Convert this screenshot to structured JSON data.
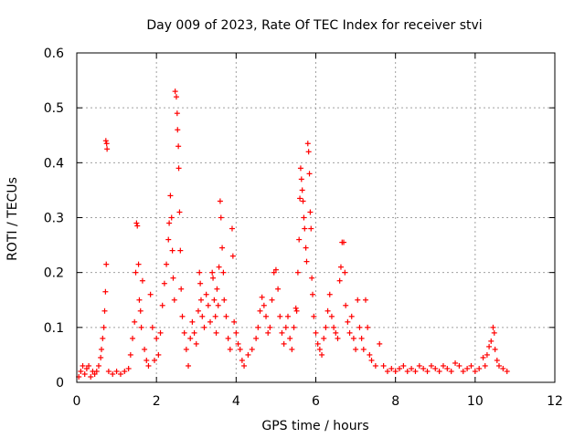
{
  "chart_data": {
    "type": "scatter",
    "title": "Day 009 of 2023, Rate Of TEC Index for receiver stvi",
    "xlabel": "GPS time / hours",
    "ylabel": "ROTI / TECUs",
    "xlim": [
      0,
      12
    ],
    "ylim": [
      0,
      0.6
    ],
    "x_ticks": [
      "0",
      "2",
      "4",
      "6",
      "8",
      "10",
      "12"
    ],
    "y_ticks": [
      "0",
      "0.1",
      "0.2",
      "0.3",
      "0.4",
      "0.5",
      "0.6"
    ],
    "grid": true,
    "marker": "plus",
    "color": "#ff0000",
    "series": [
      {
        "points": [
          [
            0.05,
            0.01
          ],
          [
            0.1,
            0.02
          ],
          [
            0.15,
            0.03
          ],
          [
            0.2,
            0.015
          ],
          [
            0.25,
            0.025
          ],
          [
            0.3,
            0.03
          ],
          [
            0.35,
            0.01
          ],
          [
            0.4,
            0.02
          ],
          [
            0.45,
            0.015
          ],
          [
            0.5,
            0.02
          ],
          [
            0.55,
            0.03
          ],
          [
            0.6,
            0.045
          ],
          [
            0.62,
            0.06
          ],
          [
            0.65,
            0.08
          ],
          [
            0.68,
            0.1
          ],
          [
            0.7,
            0.13
          ],
          [
            0.72,
            0.165
          ],
          [
            0.74,
            0.215
          ],
          [
            0.73,
            0.44
          ],
          [
            0.75,
            0.435
          ],
          [
            0.76,
            0.425
          ],
          [
            0.8,
            0.02
          ],
          [
            0.9,
            0.015
          ],
          [
            1.0,
            0.02
          ],
          [
            1.1,
            0.015
          ],
          [
            1.2,
            0.02
          ],
          [
            1.3,
            0.025
          ],
          [
            1.35,
            0.05
          ],
          [
            1.4,
            0.08
          ],
          [
            1.45,
            0.11
          ],
          [
            1.48,
            0.2
          ],
          [
            1.5,
            0.29
          ],
          [
            1.52,
            0.285
          ],
          [
            1.55,
            0.215
          ],
          [
            1.57,
            0.15
          ],
          [
            1.6,
            0.13
          ],
          [
            1.62,
            0.1
          ],
          [
            1.65,
            0.185
          ],
          [
            1.7,
            0.06
          ],
          [
            1.75,
            0.04
          ],
          [
            1.8,
            0.03
          ],
          [
            1.85,
            0.16
          ],
          [
            1.9,
            0.1
          ],
          [
            1.95,
            0.04
          ],
          [
            2.0,
            0.08
          ],
          [
            2.05,
            0.05
          ],
          [
            2.1,
            0.09
          ],
          [
            2.15,
            0.14
          ],
          [
            2.2,
            0.18
          ],
          [
            2.25,
            0.215
          ],
          [
            2.3,
            0.26
          ],
          [
            2.32,
            0.29
          ],
          [
            2.35,
            0.34
          ],
          [
            2.38,
            0.3
          ],
          [
            2.4,
            0.24
          ],
          [
            2.42,
            0.19
          ],
          [
            2.45,
            0.15
          ],
          [
            2.47,
            0.53
          ],
          [
            2.5,
            0.52
          ],
          [
            2.52,
            0.49
          ],
          [
            2.53,
            0.46
          ],
          [
            2.55,
            0.43
          ],
          [
            2.56,
            0.39
          ],
          [
            2.58,
            0.31
          ],
          [
            2.6,
            0.24
          ],
          [
            2.62,
            0.17
          ],
          [
            2.65,
            0.12
          ],
          [
            2.7,
            0.09
          ],
          [
            2.75,
            0.06
          ],
          [
            2.8,
            0.03
          ],
          [
            2.85,
            0.08
          ],
          [
            2.9,
            0.11
          ],
          [
            2.95,
            0.09
          ],
          [
            3.0,
            0.07
          ],
          [
            3.05,
            0.13
          ],
          [
            3.08,
            0.2
          ],
          [
            3.1,
            0.18
          ],
          [
            3.12,
            0.15
          ],
          [
            3.15,
            0.12
          ],
          [
            3.2,
            0.1
          ],
          [
            3.25,
            0.16
          ],
          [
            3.3,
            0.14
          ],
          [
            3.35,
            0.11
          ],
          [
            3.4,
            0.2
          ],
          [
            3.42,
            0.19
          ],
          [
            3.45,
            0.15
          ],
          [
            3.48,
            0.12
          ],
          [
            3.5,
            0.09
          ],
          [
            3.52,
            0.17
          ],
          [
            3.55,
            0.14
          ],
          [
            3.57,
            0.21
          ],
          [
            3.6,
            0.33
          ],
          [
            3.62,
            0.3
          ],
          [
            3.65,
            0.245
          ],
          [
            3.68,
            0.2
          ],
          [
            3.7,
            0.15
          ],
          [
            3.75,
            0.12
          ],
          [
            3.8,
            0.08
          ],
          [
            3.85,
            0.06
          ],
          [
            3.9,
            0.28
          ],
          [
            3.92,
            0.23
          ],
          [
            3.95,
            0.11
          ],
          [
            4.0,
            0.09
          ],
          [
            4.05,
            0.07
          ],
          [
            4.1,
            0.06
          ],
          [
            4.15,
            0.04
          ],
          [
            4.2,
            0.03
          ],
          [
            4.3,
            0.05
          ],
          [
            4.4,
            0.06
          ],
          [
            4.5,
            0.08
          ],
          [
            4.55,
            0.1
          ],
          [
            4.6,
            0.13
          ],
          [
            4.65,
            0.155
          ],
          [
            4.7,
            0.14
          ],
          [
            4.75,
            0.12
          ],
          [
            4.8,
            0.09
          ],
          [
            4.85,
            0.1
          ],
          [
            4.9,
            0.15
          ],
          [
            4.95,
            0.2
          ],
          [
            5.0,
            0.205
          ],
          [
            5.05,
            0.17
          ],
          [
            5.1,
            0.12
          ],
          [
            5.15,
            0.09
          ],
          [
            5.2,
            0.07
          ],
          [
            5.25,
            0.1
          ],
          [
            5.3,
            0.12
          ],
          [
            5.35,
            0.08
          ],
          [
            5.4,
            0.06
          ],
          [
            5.45,
            0.1
          ],
          [
            5.5,
            0.135
          ],
          [
            5.52,
            0.13
          ],
          [
            5.55,
            0.2
          ],
          [
            5.58,
            0.26
          ],
          [
            5.6,
            0.335
          ],
          [
            5.62,
            0.39
          ],
          [
            5.64,
            0.37
          ],
          [
            5.66,
            0.35
          ],
          [
            5.68,
            0.33
          ],
          [
            5.7,
            0.3
          ],
          [
            5.72,
            0.28
          ],
          [
            5.75,
            0.245
          ],
          [
            5.77,
            0.22
          ],
          [
            5.8,
            0.435
          ],
          [
            5.82,
            0.42
          ],
          [
            5.84,
            0.38
          ],
          [
            5.86,
            0.31
          ],
          [
            5.88,
            0.28
          ],
          [
            5.9,
            0.19
          ],
          [
            5.92,
            0.16
          ],
          [
            5.95,
            0.12
          ],
          [
            6.0,
            0.09
          ],
          [
            6.05,
            0.07
          ],
          [
            6.1,
            0.06
          ],
          [
            6.15,
            0.05
          ],
          [
            6.2,
            0.08
          ],
          [
            6.25,
            0.1
          ],
          [
            6.3,
            0.13
          ],
          [
            6.35,
            0.16
          ],
          [
            6.4,
            0.12
          ],
          [
            6.45,
            0.1
          ],
          [
            6.5,
            0.09
          ],
          [
            6.55,
            0.08
          ],
          [
            6.6,
            0.185
          ],
          [
            6.63,
            0.21
          ],
          [
            6.66,
            0.255
          ],
          [
            6.7,
            0.255
          ],
          [
            6.73,
            0.2
          ],
          [
            6.75,
            0.14
          ],
          [
            6.8,
            0.11
          ],
          [
            6.85,
            0.09
          ],
          [
            6.9,
            0.12
          ],
          [
            6.95,
            0.08
          ],
          [
            7.0,
            0.06
          ],
          [
            7.05,
            0.15
          ],
          [
            7.1,
            0.1
          ],
          [
            7.15,
            0.08
          ],
          [
            7.2,
            0.06
          ],
          [
            7.25,
            0.15
          ],
          [
            7.3,
            0.1
          ],
          [
            7.35,
            0.05
          ],
          [
            7.4,
            0.04
          ],
          [
            7.5,
            0.03
          ],
          [
            7.6,
            0.07
          ],
          [
            7.7,
            0.03
          ],
          [
            7.8,
            0.02
          ],
          [
            7.9,
            0.025
          ],
          [
            8.0,
            0.02
          ],
          [
            8.1,
            0.025
          ],
          [
            8.2,
            0.03
          ],
          [
            8.3,
            0.02
          ],
          [
            8.4,
            0.025
          ],
          [
            8.5,
            0.02
          ],
          [
            8.6,
            0.03
          ],
          [
            8.7,
            0.025
          ],
          [
            8.8,
            0.02
          ],
          [
            8.9,
            0.03
          ],
          [
            9.0,
            0.025
          ],
          [
            9.1,
            0.02
          ],
          [
            9.2,
            0.03
          ],
          [
            9.3,
            0.025
          ],
          [
            9.4,
            0.02
          ],
          [
            9.5,
            0.035
          ],
          [
            9.6,
            0.03
          ],
          [
            9.7,
            0.02
          ],
          [
            9.8,
            0.025
          ],
          [
            9.9,
            0.03
          ],
          [
            10.0,
            0.02
          ],
          [
            10.1,
            0.025
          ],
          [
            10.2,
            0.045
          ],
          [
            10.25,
            0.03
          ],
          [
            10.3,
            0.05
          ],
          [
            10.35,
            0.065
          ],
          [
            10.4,
            0.075
          ],
          [
            10.45,
            0.1
          ],
          [
            10.48,
            0.09
          ],
          [
            10.5,
            0.06
          ],
          [
            10.55,
            0.04
          ],
          [
            10.6,
            0.03
          ],
          [
            10.7,
            0.025
          ],
          [
            10.8,
            0.02
          ]
        ]
      }
    ]
  }
}
